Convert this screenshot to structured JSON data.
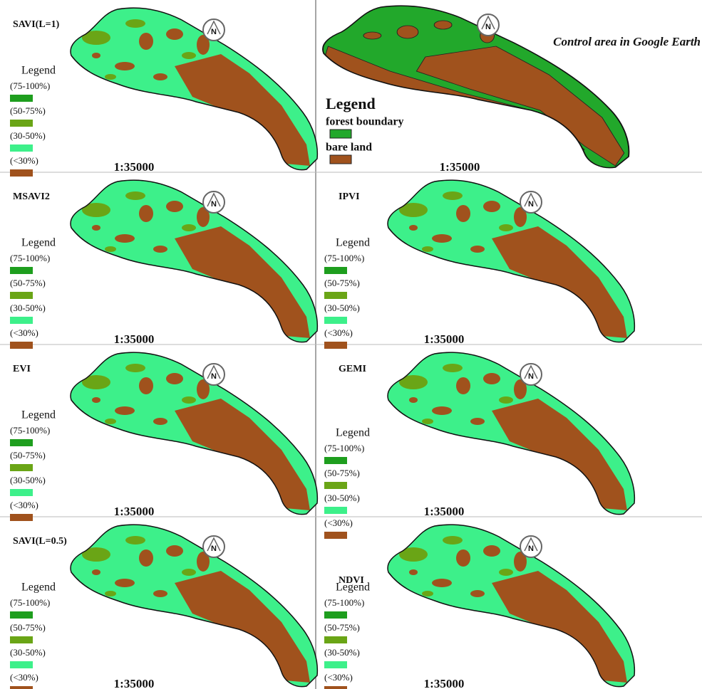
{
  "panels": [
    {
      "title": "SAVI(L=1)",
      "north": "N",
      "scale": "1:35000",
      "legend": {
        "title": "Legend",
        "items": [
          {
            "label": "(75-100%)",
            "color": "#1e9e1e"
          },
          {
            "label": "(50-75%)",
            "color": "#6aa516"
          },
          {
            "label": "(30-50%)",
            "color": "#3df08a"
          },
          {
            "label": "(<30%)",
            "color": "#a0521d"
          }
        ]
      }
    },
    {
      "title": "Control area in Google Earth",
      "north": "N",
      "scale": "1:35000",
      "legend": {
        "title": "Legend",
        "items": [
          {
            "label": "forest boundary",
            "color": "#22a82b"
          },
          {
            "label": "bare land",
            "color": "#a0521d"
          }
        ]
      }
    },
    {
      "title": "MSAVI2",
      "north": "N",
      "scale": "1:35000",
      "legend": {
        "title": "Legend",
        "items": [
          {
            "label": "(75-100%)",
            "color": "#1e9e1e"
          },
          {
            "label": "(50-75%)",
            "color": "#6aa516"
          },
          {
            "label": "(30-50%)",
            "color": "#3df08a"
          },
          {
            "label": "(<30%)",
            "color": "#a0521d"
          }
        ]
      }
    },
    {
      "title": "IPVI",
      "north": "N",
      "scale": "1:35000",
      "legend": {
        "title": "Legend",
        "items": [
          {
            "label": "(75-100%)",
            "color": "#1e9e1e"
          },
          {
            "label": "(50-75%)",
            "color": "#6aa516"
          },
          {
            "label": "(30-50%)",
            "color": "#3df08a"
          },
          {
            "label": "(<30%)",
            "color": "#a0521d"
          }
        ]
      }
    },
    {
      "title": "EVI",
      "north": "N",
      "scale": "1:35000",
      "legend": {
        "title": "Legend",
        "items": [
          {
            "label": "(75-100%)",
            "color": "#1e9e1e"
          },
          {
            "label": "(50-75%)",
            "color": "#6aa516"
          },
          {
            "label": "(30-50%)",
            "color": "#3df08a"
          },
          {
            "label": "(<30%)",
            "color": "#a0521d"
          }
        ]
      }
    },
    {
      "title": "GEMI",
      "north": "N",
      "scale": "1:35000",
      "legend": {
        "title": "Legend",
        "items": [
          {
            "label": "(75-100%)",
            "color": "#1e9e1e"
          },
          {
            "label": "(50-75%)",
            "color": "#6aa516"
          },
          {
            "label": "(30-50%)",
            "color": "#3df08a"
          },
          {
            "label": "(<30%)",
            "color": "#a0521d"
          }
        ]
      }
    },
    {
      "title": "SAVI(L=0.5)",
      "north": "N",
      "scale": "1:35000",
      "legend": {
        "title": "Legend",
        "items": [
          {
            "label": "(75-100%)",
            "color": "#1e9e1e"
          },
          {
            "label": "(50-75%)",
            "color": "#6aa516"
          },
          {
            "label": "(30-50%)",
            "color": "#3df08a"
          },
          {
            "label": "(<30%)",
            "color": "#a0521d"
          }
        ]
      }
    },
    {
      "title": "NDVI",
      "north": "N",
      "scale": "1:35000",
      "legend": {
        "title": "Legend",
        "items": [
          {
            "label": "(75-100%)",
            "color": "#1e9e1e"
          },
          {
            "label": "(50-75%)",
            "color": "#6aa516"
          },
          {
            "label": "(30-50%)",
            "color": "#3df08a"
          },
          {
            "label": "(<30%)",
            "color": "#a0521d"
          }
        ]
      }
    }
  ]
}
